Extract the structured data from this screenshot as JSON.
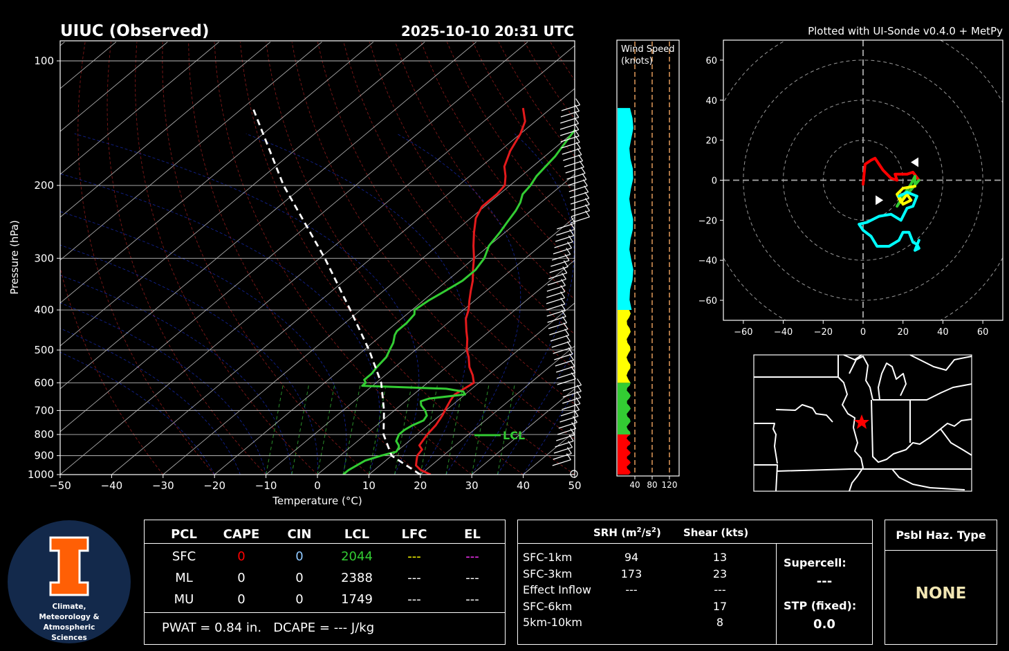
{
  "header": {
    "station_title": "UIUC (Observed)",
    "datetime": "2025-10-10 20:31 UTC",
    "credit": "Plotted with UI-Sonde v0.4.0 + MetPy"
  },
  "chart_data": [
    {
      "type": "line",
      "name": "skew-t",
      "xlabel": "Temperature (°C)",
      "ylabel": "Pressure (hPa)",
      "xlim": [
        -50,
        50
      ],
      "ylim": [
        1000,
        100
      ],
      "y_scale": "log",
      "x_ticks": [
        "−50",
        "−40",
        "−30",
        "−20",
        "−10",
        "0",
        "10",
        "20",
        "30",
        "40",
        "50"
      ],
      "y_ticks": [
        100,
        200,
        300,
        400,
        500,
        600,
        700,
        800,
        900,
        1000
      ],
      "lcl_label": "LCL",
      "lcl_pressure": 800,
      "series": [
        {
          "color": "#e41a1c",
          "points": [
            [
              1000,
              22
            ],
            [
              975,
              19
            ],
            [
              950,
              17
            ],
            [
              925,
              16
            ],
            [
              900,
              15
            ],
            [
              870,
              14.5
            ],
            [
              850,
              13
            ],
            [
              825,
              12.5
            ],
            [
              800,
              12
            ],
            [
              760,
              11.5
            ],
            [
              720,
              10.5
            ],
            [
              690,
              9.5
            ],
            [
              660,
              8.5
            ],
            [
              640,
              8
            ],
            [
              620,
              8.5
            ],
            [
              600,
              9
            ],
            [
              575,
              7
            ],
            [
              550,
              4.5
            ],
            [
              520,
              2
            ],
            [
              500,
              0
            ],
            [
              470,
              -2.5
            ],
            [
              450,
              -4.5
            ],
            [
              420,
              -7.5
            ],
            [
              400,
              -9
            ],
            [
              380,
              -11
            ],
            [
              360,
              -13
            ],
            [
              340,
              -15
            ],
            [
              320,
              -17.5
            ],
            [
              300,
              -20
            ],
            [
              280,
              -23
            ],
            [
              260,
              -26
            ],
            [
              240,
              -29
            ],
            [
              225,
              -30.5
            ],
            [
              210,
              -30.5
            ],
            [
              200,
              -31
            ],
            [
              190,
              -33
            ],
            [
              180,
              -35.5
            ],
            [
              165,
              -38
            ],
            [
              150,
              -40
            ],
            [
              140,
              -42
            ],
            [
              130,
              -45.5
            ]
          ]
        },
        {
          "color": "#33cc33",
          "points": [
            [
              1000,
              5
            ],
            [
              975,
              5
            ],
            [
              950,
              5.5
            ],
            [
              925,
              6
            ],
            [
              900,
              8
            ],
            [
              880,
              10
            ],
            [
              860,
              9.5
            ],
            [
              850,
              9
            ],
            [
              830,
              7.5
            ],
            [
              800,
              6.5
            ],
            [
              780,
              6.5
            ],
            [
              760,
              7
            ],
            [
              740,
              8
            ],
            [
              720,
              7.5
            ],
            [
              700,
              6
            ],
            [
              680,
              4
            ],
            [
              665,
              3
            ],
            [
              655,
              4
            ],
            [
              640,
              10
            ],
            [
              630,
              9
            ],
            [
              620,
              5
            ],
            [
              610,
              -12
            ],
            [
              600,
              -12
            ],
            [
              590,
              -13
            ],
            [
              570,
              -13
            ],
            [
              550,
              -13.5
            ],
            [
              520,
              -14
            ],
            [
              500,
              -15
            ],
            [
              480,
              -16
            ],
            [
              460,
              -17.5
            ],
            [
              450,
              -18
            ],
            [
              430,
              -18
            ],
            [
              410,
              -18.5
            ],
            [
              400,
              -19.5
            ],
            [
              380,
              -19
            ],
            [
              360,
              -18
            ],
            [
              340,
              -17
            ],
            [
              320,
              -17
            ],
            [
              300,
              -18
            ],
            [
              280,
              -20
            ],
            [
              260,
              -21
            ],
            [
              245,
              -22
            ],
            [
              230,
              -23
            ],
            [
              220,
              -24
            ],
            [
              210,
              -25.5
            ],
            [
              200,
              -26
            ],
            [
              190,
              -27
            ],
            [
              180,
              -27.5
            ],
            [
              170,
              -28
            ],
            [
              160,
              -29
            ],
            [
              150,
              -30
            ],
            [
              140,
              -31
            ],
            [
              130,
              -32
            ]
          ]
        },
        {
          "color": "#ffffff",
          "dashed": true,
          "points": [
            [
              1000,
              20
            ],
            [
              900,
              10
            ],
            [
              800,
              3.5
            ],
            [
              700,
              -2
            ],
            [
              600,
              -9
            ],
            [
              500,
              -19
            ],
            [
              400,
              -32
            ],
            [
              300,
              -49
            ],
            [
              200,
              -74
            ],
            [
              130,
              -98
            ]
          ]
        }
      ]
    },
    {
      "type": "bar",
      "name": "wind-speed-profile",
      "title": "Wind Speed\n(knots)",
      "x_ticks": [
        40,
        80,
        120
      ],
      "segments": [
        {
          "color": "#ff0000",
          "from_hpa": 1000,
          "to_hpa": 800
        },
        {
          "color": "#33cc33",
          "from_hpa": 800,
          "to_hpa": 600
        },
        {
          "color": "#ffff00",
          "from_hpa": 600,
          "to_hpa": 400
        },
        {
          "color": "#00ffff",
          "from_hpa": 400,
          "to_hpa": 130
        }
      ]
    },
    {
      "type": "line",
      "name": "hodograph",
      "xlim": [
        -70,
        70
      ],
      "ylim": [
        -70,
        70
      ],
      "ticks": [
        -60,
        -40,
        -20,
        0,
        20,
        40,
        60
      ],
      "series": [
        {
          "color": "#ff0000",
          "points": [
            [
              0,
              -2
            ],
            [
              1,
              8
            ],
            [
              4,
              10
            ],
            [
              6,
              11
            ],
            [
              8,
              8
            ],
            [
              10,
              5
            ],
            [
              14,
              1
            ],
            [
              17,
              0
            ],
            [
              16,
              3
            ],
            [
              19,
              3
            ],
            [
              22,
              3
            ],
            [
              25,
              4
            ],
            [
              28,
              0
            ]
          ]
        },
        {
          "color": "#33cc33",
          "points": [
            [
              28,
              0
            ],
            [
              23,
              -6
            ],
            [
              19,
              -10
            ],
            [
              17,
              -13
            ],
            [
              20,
              -8
            ],
            [
              24,
              -2
            ],
            [
              26,
              2
            ],
            [
              26,
              -3
            ]
          ]
        },
        {
          "color": "#ffff00",
          "points": [
            [
              26,
              -3
            ],
            [
              20,
              -4
            ],
            [
              17,
              -7
            ],
            [
              19,
              -11
            ],
            [
              22,
              -7
            ],
            [
              24,
              -10
            ],
            [
              20,
              -12
            ],
            [
              18,
              -8
            ]
          ]
        },
        {
          "color": "#00ffff",
          "points": [
            [
              18,
              -8
            ],
            [
              22,
              -6
            ],
            [
              27,
              -8
            ],
            [
              25,
              -13
            ],
            [
              22,
              -14
            ],
            [
              19,
              -20
            ],
            [
              14,
              -17
            ],
            [
              8,
              -18
            ],
            [
              2,
              -21
            ],
            [
              -2,
              -22
            ],
            [
              0,
              -25
            ],
            [
              4,
              -28
            ],
            [
              7,
              -33
            ],
            [
              13,
              -33
            ],
            [
              18,
              -30
            ],
            [
              20,
              -26
            ],
            [
              23,
              -26
            ],
            [
              25,
              -31
            ],
            [
              27,
              -32
            ],
            [
              28,
              -34
            ],
            [
              26,
              -35
            ],
            [
              28,
              -30
            ]
          ]
        }
      ],
      "markers": [
        {
          "type": "storm-motion-right",
          "x": 26,
          "y": 9
        },
        {
          "type": "storm-motion-left",
          "x": 8,
          "y": -10
        }
      ]
    }
  ],
  "colors": {
    "temperature": "#e41a1c",
    "dewpoint": "#33cc33",
    "parcel": "#ffffff",
    "accent_red": "#ff0000",
    "haz": "#f2e6b3"
  },
  "logo": {
    "line1": "Climate,",
    "line2": "Meteorology &",
    "line3": "Atmospheric",
    "line4": "Sciences"
  },
  "parcel_table": {
    "headers": [
      "PCL",
      "CAPE",
      "CIN",
      "LCL",
      "LFC",
      "EL"
    ],
    "rows": [
      {
        "pcl": "SFC",
        "cape": "0",
        "cin": "0",
        "lcl": "2044",
        "lfc": "---",
        "el": "---"
      },
      {
        "pcl": "ML",
        "cape": "0",
        "cin": "0",
        "lcl": "2388",
        "lfc": "---",
        "el": "---"
      },
      {
        "pcl": "MU",
        "cape": "0",
        "cin": "0",
        "lcl": "1749",
        "lfc": "---",
        "el": "---"
      }
    ],
    "pwat_line": "PWAT = 0.84 in.   DCAPE = --- J/kg"
  },
  "kinematics": {
    "srh_header_prefix": "SRH (m",
    "srh_header_sup": "2",
    "srh_header_mid": "/s",
    "srh_header_suffix": ")",
    "shear_header": "Shear (kts)",
    "rows": [
      {
        "layer": "SFC-1km",
        "srh": "94",
        "shear": "13"
      },
      {
        "layer": "SFC-3km",
        "srh": "173",
        "shear": "23"
      },
      {
        "layer": "Effect Inflow",
        "srh": "---",
        "shear": "---"
      },
      {
        "layer": "SFC-6km",
        "srh": "",
        "shear": "17"
      },
      {
        "layer": "5km-10km",
        "srh": "",
        "shear": "8"
      }
    ],
    "supercell_label": "Supercell:",
    "supercell_value": "---",
    "stp_label": "STP (fixed):",
    "stp_value": "0.0"
  },
  "hazard": {
    "title": "Psbl Haz. Type",
    "value": "NONE"
  }
}
